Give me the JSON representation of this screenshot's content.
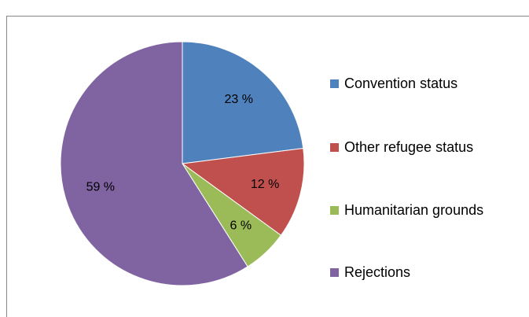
{
  "chart_data": {
    "type": "pie",
    "categories": [
      "Convention status",
      "Other refugee status",
      "Humanitarian grounds",
      "Rejections"
    ],
    "values": [
      23,
      12,
      6,
      59
    ],
    "value_labels": [
      "23 %",
      "12 %",
      "6 %",
      "59 %"
    ],
    "colors": [
      "#4f81bd",
      "#c0504d",
      "#9bbb59",
      "#8064a2"
    ],
    "legend": "right"
  }
}
